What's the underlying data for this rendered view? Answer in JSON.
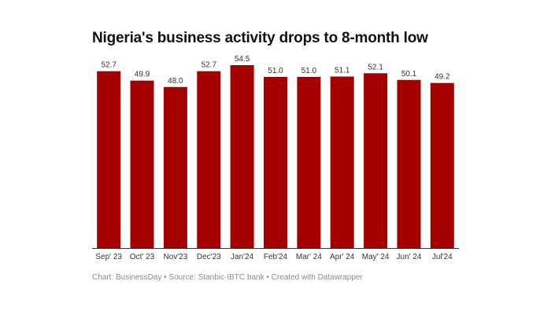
{
  "chart_data": {
    "type": "bar",
    "title": "Nigeria's business activity drops to 8-month low",
    "categories": [
      "Sep' 23",
      "Oct' 23",
      "Nov'23",
      "Dec'23",
      "Jan'24",
      "Feb'24",
      "Mar' 24",
      "Apr' 24",
      "May' 24",
      "Jun' 24",
      "Jul'24"
    ],
    "values": [
      52.7,
      49.9,
      48.0,
      52.7,
      54.5,
      51.0,
      51.0,
      51.1,
      52.1,
      50.1,
      49.2
    ],
    "value_labels": [
      "52.7",
      "49.9",
      "48.0",
      "52.7",
      "54.5",
      "51.0",
      "51.0",
      "51.1",
      "52.1",
      "50.1",
      "49.2"
    ],
    "ylim": [
      0,
      54.5
    ],
    "grid": false,
    "legend": "none",
    "bar_color": "#a50000"
  },
  "footer": {
    "credit": "Chart: BusinessDay • Source: Stanbic-IBTC bank • Created with Datawrapper"
  }
}
